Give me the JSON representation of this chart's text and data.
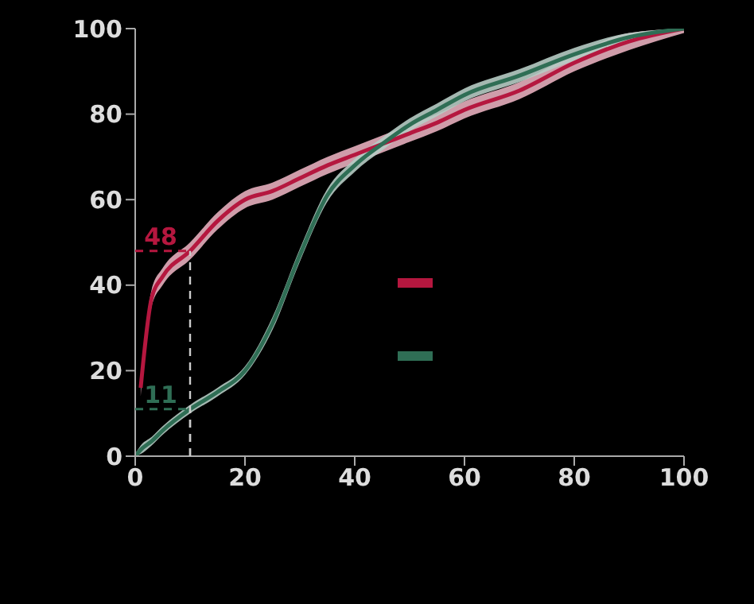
{
  "chart_data": {
    "type": "line",
    "x": [
      0,
      1,
      3,
      5,
      10,
      15,
      20,
      25,
      30,
      35,
      40,
      45,
      50,
      55,
      60,
      70,
      80,
      90,
      100
    ],
    "series": [
      {
        "color": "#b5173f",
        "values": [
          null,
          16,
          37,
          42,
          48,
          55,
          60,
          62,
          65,
          68,
          70.5,
          73,
          75.5,
          78,
          81,
          85.5,
          92,
          97,
          100
        ],
        "lower": [
          null,
          14,
          35,
          40,
          46,
          53,
          58,
          60,
          63,
          66,
          68.5,
          71,
          73.5,
          76,
          79,
          83.5,
          90,
          95,
          99
        ],
        "upper": [
          null,
          18,
          39,
          44,
          50,
          57,
          62,
          64,
          67,
          70,
          72.5,
          75,
          77.5,
          80,
          83,
          87.5,
          94,
          99,
          100
        ]
      },
      {
        "color": "#2f6e55",
        "values": [
          0,
          1.5,
          3.5,
          6,
          11,
          15,
          20,
          31,
          47,
          61,
          68,
          73,
          77.5,
          81,
          84.5,
          89,
          94,
          98,
          100
        ],
        "lower": [
          0,
          0.5,
          2.5,
          5,
          10,
          14,
          19,
          29.5,
          45.5,
          59.5,
          66.5,
          71.5,
          76,
          79.5,
          83,
          87.5,
          92.5,
          97,
          99.5
        ],
        "upper": [
          0.5,
          2.5,
          4.5,
          7,
          12,
          16,
          21,
          32.5,
          48.5,
          62.5,
          69.5,
          74.5,
          79,
          82.5,
          86,
          90.5,
          95.5,
          99,
          100
        ]
      }
    ],
    "xlim": [
      0,
      100
    ],
    "xticks": [
      0,
      20,
      40,
      60,
      80,
      100
    ],
    "ylim": [
      0,
      100
    ],
    "yticks": [
      0,
      20,
      40,
      60,
      80,
      100
    ],
    "annotations": [
      {
        "text": "48",
        "x": 10,
        "y": 48
      },
      {
        "text": "11",
        "x": 10,
        "y": 11
      }
    ],
    "grid": false,
    "marker": "none",
    "line_style": "solid"
  }
}
